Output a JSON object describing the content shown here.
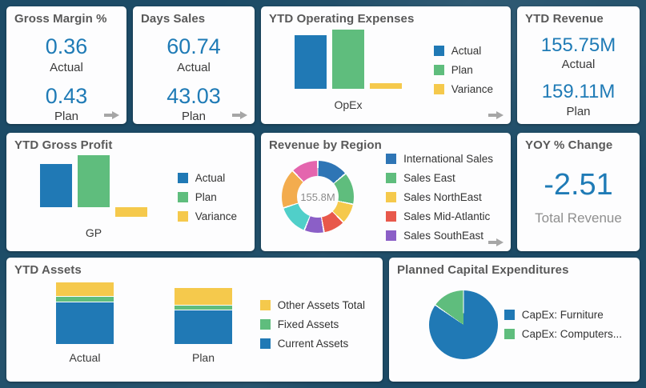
{
  "theme": {
    "page_bg": "#1c4b66",
    "card_bg": "#fdfdfe",
    "title_color": "#595959",
    "value_color": "#1f7bb6",
    "label_color": "#3a3a3a",
    "muted_color": "#8f8f8f",
    "arrow_color": "#a6a6a6",
    "series_colors": {
      "actual_blue": "#2079b5",
      "plan_green": "#5fbd7d",
      "variance_yellow": "#f5c94c"
    }
  },
  "cards": {
    "gross_margin": {
      "title": "Gross Margin %",
      "metrics": [
        {
          "value": "0.36",
          "label": "Actual"
        },
        {
          "value": "0.43",
          "label": "Plan"
        }
      ],
      "drill_arrow": true
    },
    "days_sales": {
      "title": "Days Sales",
      "metrics": [
        {
          "value": "60.74",
          "label": "Actual"
        },
        {
          "value": "43.03",
          "label": "Plan"
        }
      ],
      "drill_arrow": true
    },
    "ytd_operating_expenses": {
      "title": "YTD Operating Expenses",
      "drill_arrow": true
    },
    "ytd_revenue": {
      "title": "YTD Revenue",
      "metrics": [
        {
          "value": "155.75M",
          "label": "Actual"
        },
        {
          "value": "159.11M",
          "label": "Plan"
        }
      ],
      "drill_arrow": false
    },
    "ytd_gross_profit": {
      "title": "YTD Gross Profit",
      "drill_arrow": false
    },
    "revenue_by_region": {
      "title": "Revenue by Region",
      "drill_arrow": true
    },
    "yoy_change": {
      "title": "YOY % Change",
      "metrics": [
        {
          "value": "-2.51",
          "label": "Total Revenue"
        }
      ],
      "drill_arrow": false
    },
    "ytd_assets": {
      "title": "YTD Assets",
      "drill_arrow": false
    },
    "planned_capex": {
      "title": "Planned Capital Expenditures",
      "drill_arrow": false
    }
  },
  "chart_data": [
    {
      "id": "ytd_operating_expenses",
      "type": "bar",
      "title": "YTD Operating Expenses",
      "categories": [
        "OpEx"
      ],
      "units": "relative (Plan = 100), estimated from bar heights",
      "series": [
        {
          "name": "Actual",
          "value": 90,
          "color": "#2079b5"
        },
        {
          "name": "Plan",
          "value": 100,
          "color": "#5fbd7d"
        },
        {
          "name": "Variance",
          "value": 9,
          "color": "#f5c94c"
        }
      ],
      "legend_position": "right",
      "grid": false
    },
    {
      "id": "ytd_gross_profit",
      "type": "bar",
      "title": "YTD Gross Profit",
      "categories": [
        "GP"
      ],
      "units": "relative (Plan = 100), estimated from bar heights",
      "series": [
        {
          "name": "Actual",
          "value": 82,
          "color": "#2079b5"
        },
        {
          "name": "Plan",
          "value": 100,
          "color": "#5fbd7d"
        },
        {
          "name": "Variance",
          "value": -18,
          "color": "#f5c94c"
        }
      ],
      "legend_position": "right",
      "grid": false
    },
    {
      "id": "revenue_by_region",
      "type": "pie",
      "donut": true,
      "title": "Revenue by Region",
      "center_label": "155.8M",
      "units": "segment sweep in degrees, estimated",
      "segments": [
        {
          "label": "International Sales",
          "color": "#2e75b5",
          "sweep_deg": 50
        },
        {
          "label": "Sales East",
          "color": "#5fbd7d",
          "sweep_deg": 52
        },
        {
          "label": "Sales NorthEast",
          "color": "#f5c94c",
          "sweep_deg": 33
        },
        {
          "label": "Sales Mid-Atlantic",
          "color": "#e8584b",
          "sweep_deg": 35
        },
        {
          "label": "Sales SouthEast",
          "color": "#8b5fc7",
          "sweep_deg": 32
        },
        {
          "label": "",
          "color": "#50cfc9",
          "sweep_deg": 50
        },
        {
          "label": "",
          "color": "#f3ac4e",
          "sweep_deg": 64
        },
        {
          "label": "",
          "color": "#e465ae",
          "sweep_deg": 44
        }
      ],
      "legend": [
        "International Sales",
        "Sales East",
        "Sales NorthEast",
        "Sales Mid-Atlantic",
        "Sales SouthEast"
      ],
      "legend_position": "right"
    },
    {
      "id": "ytd_assets",
      "type": "bar",
      "stacked": true,
      "title": "YTD Assets",
      "categories": [
        "Actual",
        "Plan"
      ],
      "units": "relative, estimated from segment heights",
      "series": [
        {
          "name": "Current Assets",
          "color": "#2079b5",
          "values": [
            52,
            42
          ]
        },
        {
          "name": "Fixed Assets",
          "color": "#5fbd7d",
          "values": [
            6,
            5
          ]
        },
        {
          "name": "Other Assets Total",
          "color": "#f5c94c",
          "values": [
            17,
            21
          ]
        }
      ],
      "legend": [
        "Other Assets Total",
        "Fixed Assets",
        "Current Assets"
      ],
      "legend_position": "right",
      "grid": false
    },
    {
      "id": "planned_capex",
      "type": "pie",
      "donut": false,
      "title": "Planned Capital Expenditures",
      "units": "segment sweep in degrees, estimated",
      "segments": [
        {
          "label": "CapEx: Furniture",
          "color": "#2079b5",
          "sweep_deg": 305
        },
        {
          "label": "CapEx: Computers...",
          "color": "#5fbd7d",
          "sweep_deg": 55
        }
      ],
      "legend_position": "right"
    }
  ]
}
